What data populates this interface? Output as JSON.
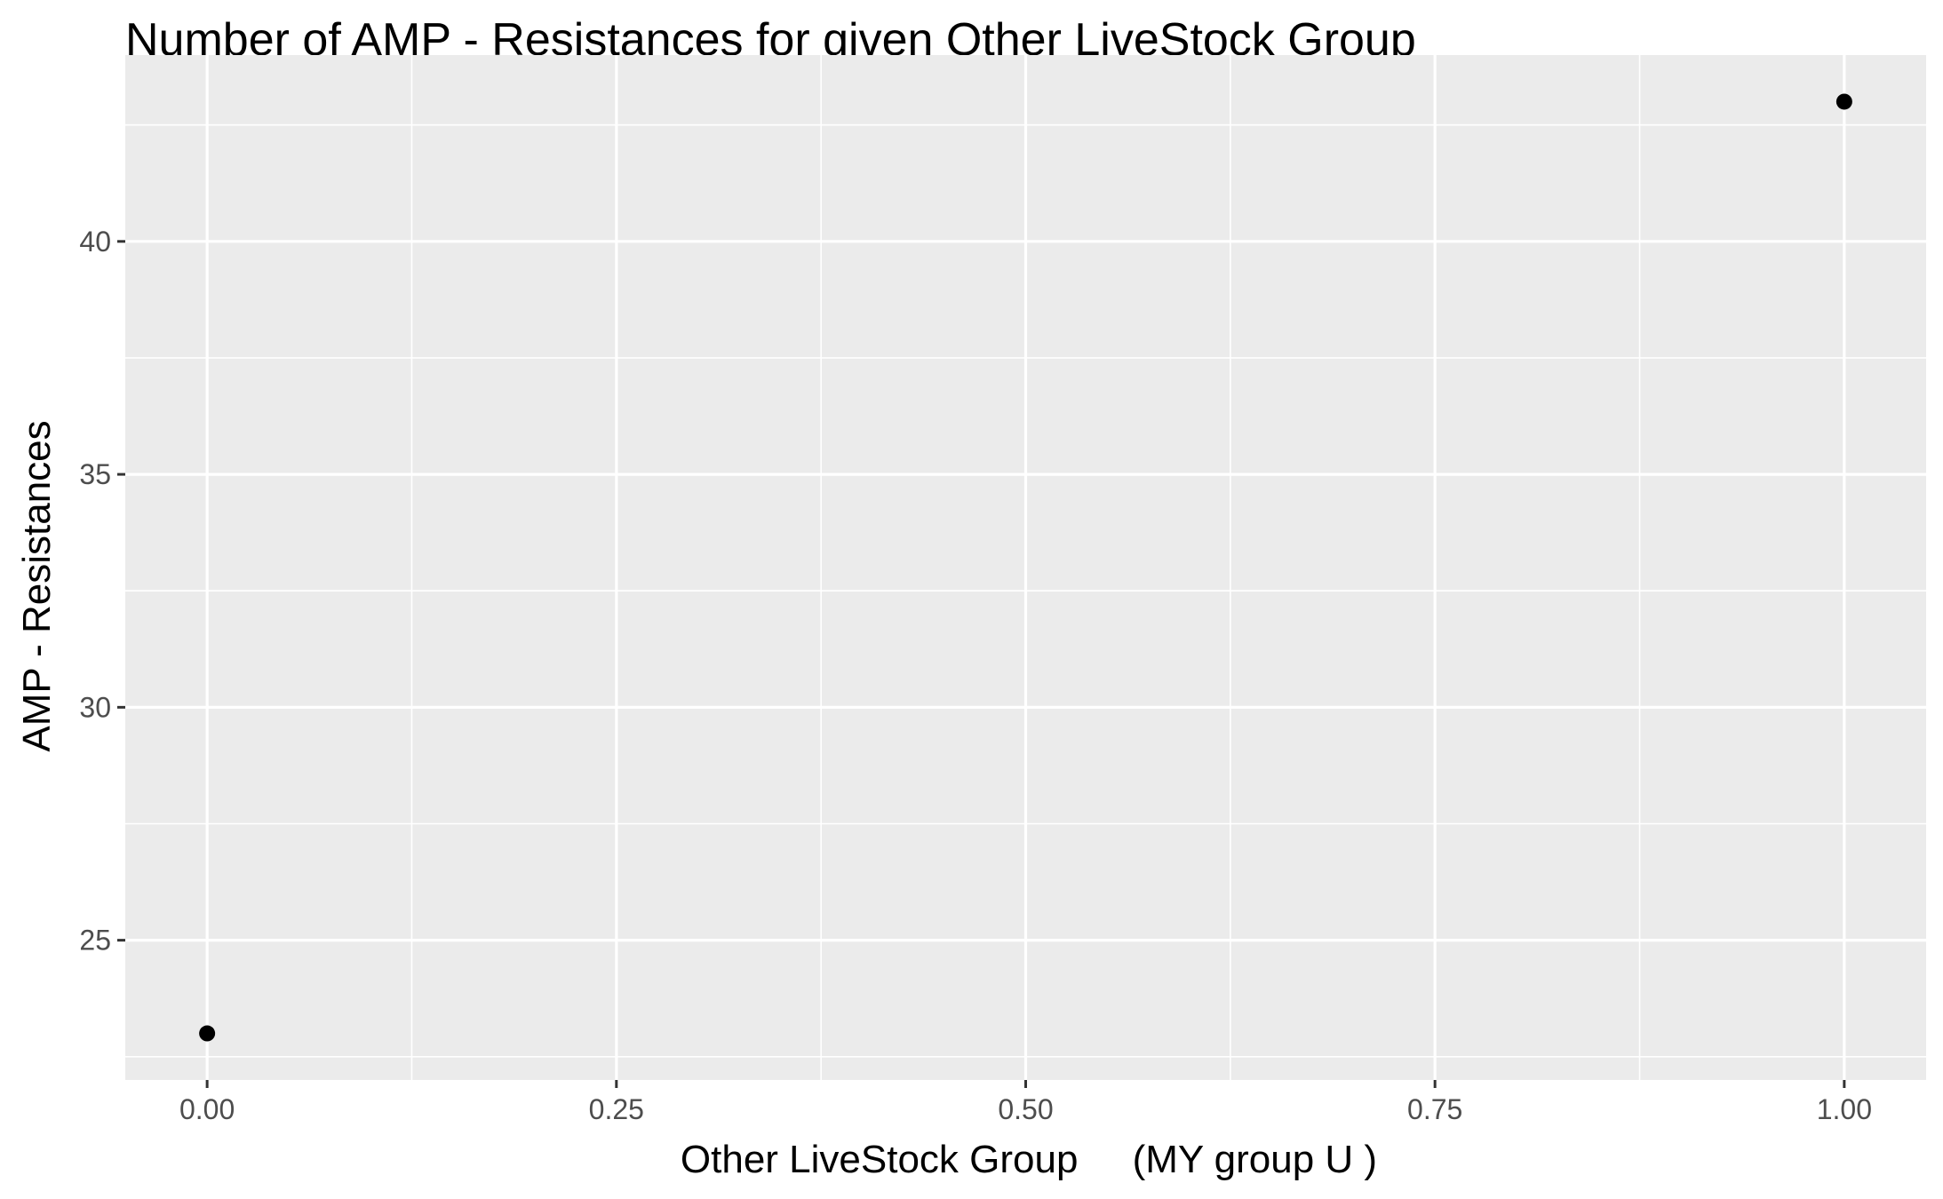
{
  "chart_data": {
    "type": "scatter",
    "title": "Number of AMP - Resistances for given Other LiveStock Group",
    "xlabel": "Other LiveStock Group     (MY group U )",
    "ylabel": "AMP - Resistances",
    "x_ticks": [
      0,
      0.25,
      0.5,
      0.75,
      1
    ],
    "x_tick_labels": [
      "0.00",
      "0.25",
      "0.50",
      "0.75",
      "1.00"
    ],
    "y_ticks": [
      25,
      30,
      35,
      40
    ],
    "y_tick_labels": [
      "25",
      "30",
      "35",
      "40"
    ],
    "xlim": [
      -0.05,
      1.05
    ],
    "ylim": [
      22,
      44
    ],
    "grid": true,
    "panel_color": "#ebebeb",
    "grid_color": "#ffffff",
    "point_color": "#000000",
    "points": [
      {
        "x": 0,
        "y": 23
      },
      {
        "x": 1,
        "y": 43
      }
    ]
  }
}
